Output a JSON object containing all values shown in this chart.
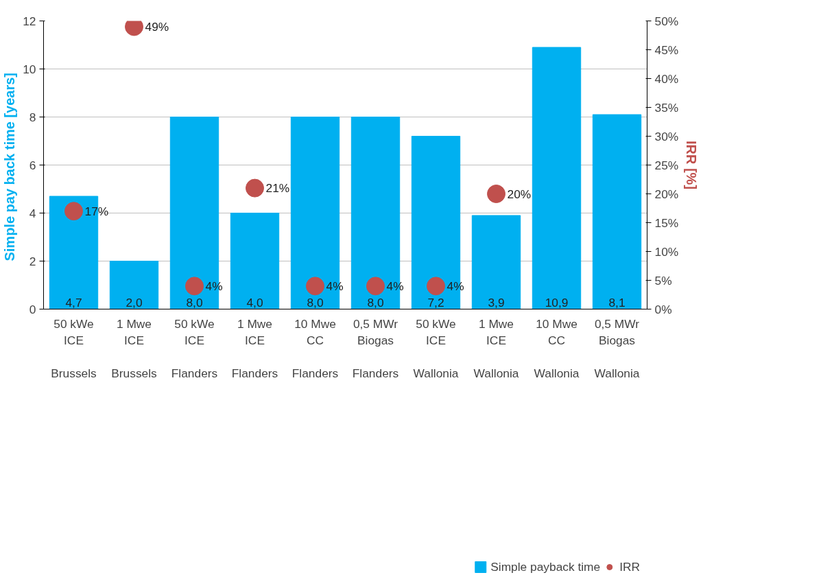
{
  "chart_data": {
    "type": "bar",
    "categories": [
      "50 kWe\nICE\n\nBrussels",
      "1 Mwe\nICE\n\nBrussels",
      "50 kWe\nICE\n\nFlanders",
      "1 Mwe\nICE\n\nFlanders",
      "10 Mwe\nCC\n\nFlanders",
      "0,5 MWr\nBiogas\n\nFlanders",
      "50 kWe\nICE\n\nWallonia",
      "1 Mwe\nICE\n\nWallonia",
      "10 Mwe\nCC\n\nWallonia",
      "0,5 MWr\nBiogas\n\nWallonia"
    ],
    "series": [
      {
        "name": "Simple payback time",
        "color": "#00b0f0",
        "values": [
          4.7,
          2.0,
          8.0,
          4.0,
          8.0,
          8.0,
          7.2,
          3.9,
          10.9,
          8.1
        ],
        "value_labels": [
          "4,7",
          "2,0",
          "8,0",
          "4,0",
          "8,0",
          "8,0",
          "7,2",
          "3,9",
          "10,9",
          "8,1"
        ]
      },
      {
        "name": "IRR",
        "type": "scatter",
        "axis": "y2",
        "marker": "circle",
        "color": "#c0504d",
        "values": [
          17,
          49,
          4,
          21,
          4,
          4,
          4,
          20,
          null,
          null
        ],
        "value_labels": [
          "17%",
          "49%",
          "4%",
          "21%",
          "4%",
          "4%",
          "4%",
          "20%",
          null,
          null
        ]
      }
    ],
    "ylabel": "Simple pay back time  [years]",
    "y2label": "IRR [%]",
    "ylim": [
      0,
      12
    ],
    "yticks": [
      0,
      2,
      4,
      6,
      8,
      10,
      12
    ],
    "y2lim": [
      0,
      50
    ],
    "y2ticks": [
      {
        "value": 0,
        "label": "0%"
      },
      {
        "value": 5,
        "label": "5%"
      },
      {
        "value": 10,
        "label": "10%"
      },
      {
        "value": 15,
        "label": "15%"
      },
      {
        "value": 20,
        "label": "20%"
      },
      {
        "value": 25,
        "label": "25%"
      },
      {
        "value": 30,
        "label": "30%"
      },
      {
        "value": 35,
        "label": "35%"
      },
      {
        "value": 40,
        "label": "40%"
      },
      {
        "value": 45,
        "label": "45%"
      },
      {
        "value": 50,
        "label": "50%"
      }
    ],
    "grid": "y",
    "legend": "bottom"
  }
}
